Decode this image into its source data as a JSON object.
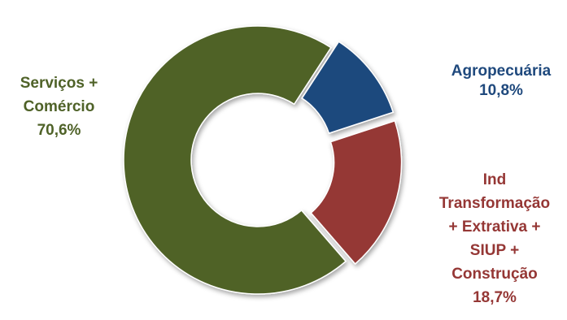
{
  "chart_data": {
    "type": "pie",
    "style": "donut",
    "slices": [
      {
        "label_lines": [
          "Agropecuária"
        ],
        "value_text": "10,8%",
        "value": 10.8,
        "color": "#1f497d"
      },
      {
        "label_lines": [
          "Ind",
          "Transformação",
          "+ Extrativa +",
          "SIUP +",
          "Construção"
        ],
        "value_text": "18,7%",
        "value": 18.7,
        "color": "#953735"
      },
      {
        "label_lines": [
          "Serviços +",
          "Comércio"
        ],
        "value_text": "70,6%",
        "value": 70.6,
        "color": "#4f6228"
      }
    ]
  }
}
